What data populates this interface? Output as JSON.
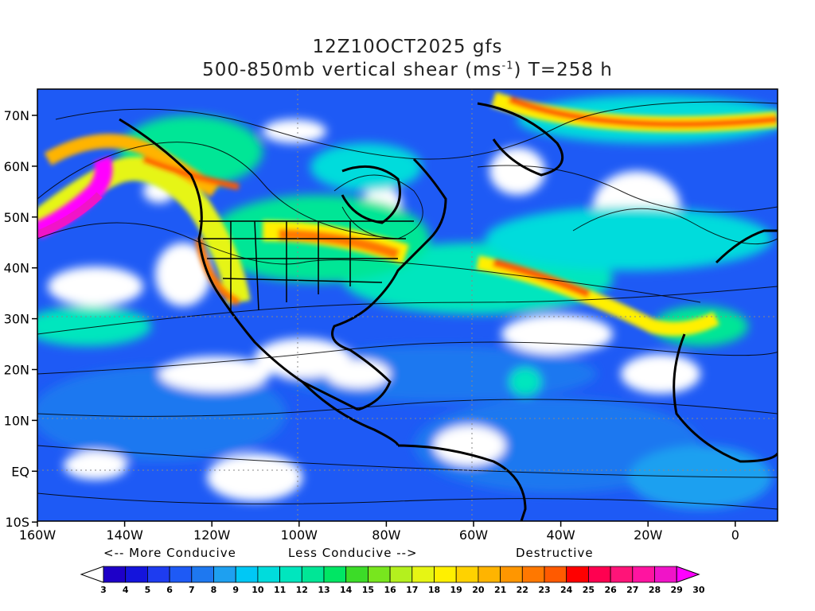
{
  "header": {
    "line1": "12Z10OCT2025 gfs",
    "line2_prefix": "500-850mb vertical shear (ms",
    "line2_exp": "-1",
    "line2_suffix": ") T=258 h"
  },
  "axes": {
    "lon_labels": [
      "160W",
      "140W",
      "120W",
      "100W",
      "80W",
      "60W",
      "40W",
      "20W",
      "0"
    ],
    "lat_labels": [
      "70N",
      "60N",
      "50N",
      "40N",
      "30N",
      "20N",
      "10N",
      "EQ",
      "10S"
    ]
  },
  "legend_captions": {
    "more": "<-- More Conducive",
    "less": "Less Conducive -->",
    "destructive": "Destructive"
  },
  "colorbar": {
    "ticks": [
      "3",
      "4",
      "5",
      "6",
      "7",
      "8",
      "9",
      "10",
      "11",
      "12",
      "13",
      "14",
      "15",
      "16",
      "17",
      "18",
      "19",
      "20",
      "21",
      "22",
      "23",
      "24",
      "25",
      "26",
      "27",
      "28",
      "29",
      "30"
    ],
    "colors": [
      "#ffffff",
      "#1e00c8",
      "#1414dc",
      "#1e3cf0",
      "#1e5af5",
      "#1e78f0",
      "#1ea0f0",
      "#00c8f5",
      "#00dcdc",
      "#00e6be",
      "#00e696",
      "#00e664",
      "#3cdc28",
      "#78e61e",
      "#b4f01e",
      "#e6f514",
      "#fff000",
      "#ffd200",
      "#ffb400",
      "#ff9600",
      "#ff7800",
      "#ff5a00",
      "#ff0000",
      "#ff0050",
      "#ff1478",
      "#ff14a0",
      "#f014c8",
      "#ff00ff"
    ]
  }
}
